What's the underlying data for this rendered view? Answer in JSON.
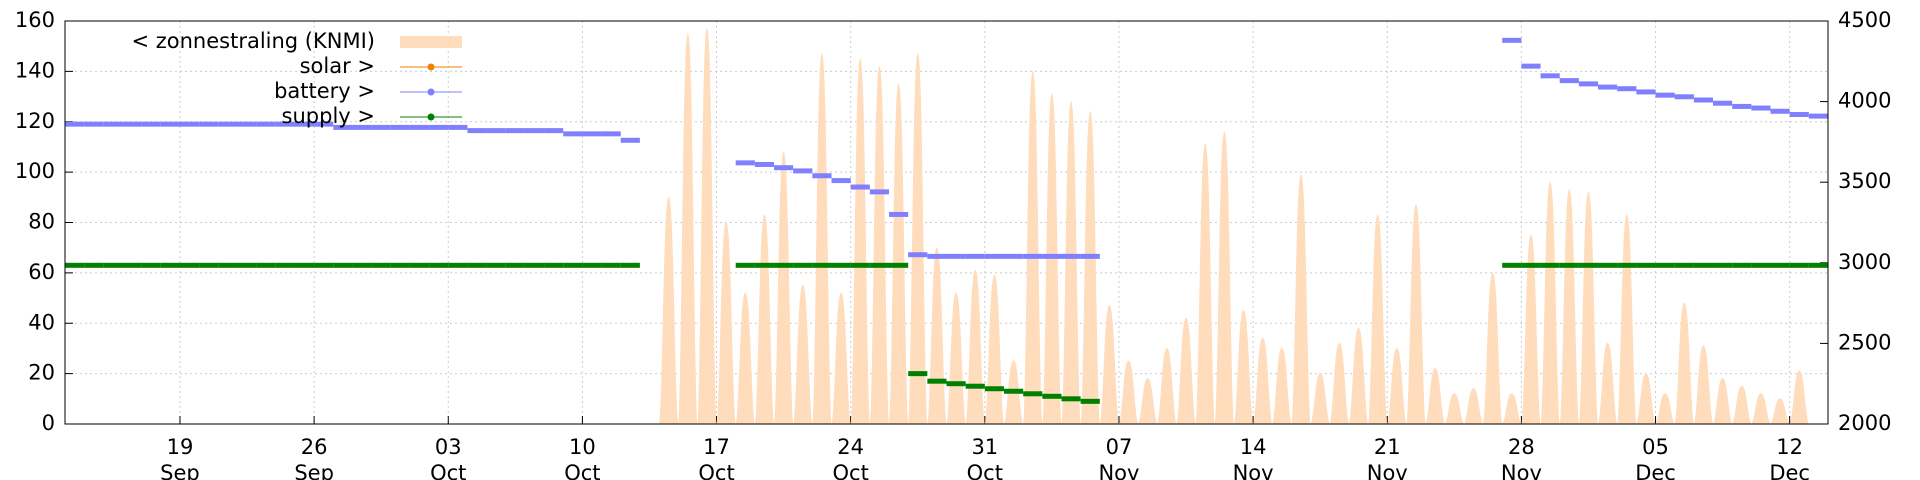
{
  "chart_data": {
    "type": "line",
    "legend": "upper left",
    "grid": true,
    "x": [
      "13 Sep",
      "14 Sep",
      "15 Sep",
      "16 Sep",
      "17 Sep",
      "18 Sep",
      "19 Sep",
      "20 Sep",
      "21 Sep",
      "22 Sep",
      "23 Sep",
      "24 Sep",
      "25 Sep",
      "26 Sep",
      "27 Sep",
      "28 Sep",
      "29 Sep",
      "30 Sep",
      "01 Oct",
      "02 Oct",
      "03 Oct",
      "04 Oct",
      "05 Oct",
      "06 Oct",
      "07 Oct",
      "08 Oct",
      "09 Oct",
      "10 Oct",
      "11 Oct",
      "12 Oct",
      "13 Oct",
      "14 Oct",
      "15 Oct",
      "16 Oct",
      "17 Oct",
      "18 Oct",
      "19 Oct",
      "20 Oct",
      "21 Oct",
      "22 Oct",
      "23 Oct",
      "24 Oct",
      "25 Oct",
      "26 Oct",
      "27 Oct",
      "28 Oct",
      "29 Oct",
      "30 Oct",
      "31 Oct",
      "01 Nov",
      "02 Nov",
      "03 Nov",
      "04 Nov",
      "05 Nov",
      "06 Nov",
      "07 Nov",
      "08 Nov",
      "09 Nov",
      "10 Nov",
      "11 Nov",
      "12 Nov",
      "13 Nov",
      "14 Nov",
      "15 Nov",
      "16 Nov",
      "17 Nov",
      "18 Nov",
      "19 Nov",
      "20 Nov",
      "21 Nov",
      "22 Nov",
      "23 Nov",
      "24 Nov",
      "25 Nov",
      "26 Nov",
      "27 Nov",
      "28 Nov",
      "29 Nov",
      "30 Nov",
      "01 Dec",
      "02 Dec",
      "03 Dec",
      "04 Dec",
      "05 Dec",
      "06 Dec",
      "07 Dec",
      "08 Dec",
      "09 Dec",
      "10 Dec",
      "11 Dec",
      "12 Dec",
      "13 Dec"
    ],
    "xticks": [
      {
        "value": "19 Sep",
        "label": "19\nSep"
      },
      {
        "value": "26 Sep",
        "label": "26\nSep"
      },
      {
        "value": "03 Oct",
        "label": "03\nOct"
      },
      {
        "value": "10 Oct",
        "label": "10\nOct"
      },
      {
        "value": "17 Oct",
        "label": "17\nOct"
      },
      {
        "value": "24 Oct",
        "label": "24\nOct"
      },
      {
        "value": "31 Oct",
        "label": "31\nOct"
      },
      {
        "value": "07 Nov",
        "label": "07\nNov"
      },
      {
        "value": "14 Nov",
        "label": "14\nNov"
      },
      {
        "value": "21 Nov",
        "label": "21\nNov"
      },
      {
        "value": "28 Nov",
        "label": "28\nNov"
      },
      {
        "value": "05 Dec",
        "label": "05\nDec"
      },
      {
        "value": "12 Dec",
        "label": "12\nDec"
      }
    ],
    "ylim": [
      0,
      160
    ],
    "yticks": [
      0,
      20,
      40,
      60,
      80,
      100,
      120,
      140,
      160
    ],
    "ytick_color": "#f07800",
    "y2lim": [
      2000,
      4500
    ],
    "y2ticks": [
      2000,
      2500,
      3000,
      3500,
      4000,
      4500
    ],
    "series": [
      {
        "name": "< zonnestraling (KNMI)",
        "color": "#ffdcbb",
        "style": "hump",
        "axis": "y",
        "values": [
          null,
          null,
          null,
          null,
          null,
          null,
          null,
          null,
          null,
          null,
          null,
          null,
          null,
          null,
          null,
          null,
          null,
          null,
          null,
          null,
          null,
          null,
          null,
          null,
          null,
          null,
          null,
          null,
          null,
          null,
          null,
          90,
          155,
          157,
          80,
          52,
          83,
          108,
          55,
          147,
          52,
          145,
          142,
          135,
          147,
          70,
          52,
          61,
          59,
          25,
          140,
          131,
          128,
          124,
          47,
          25,
          18,
          30,
          42,
          111,
          116,
          45,
          34,
          30,
          99,
          20,
          32,
          38,
          83,
          30,
          87,
          22,
          12,
          14,
          60,
          12,
          75,
          96,
          93,
          92,
          32,
          83,
          20,
          12,
          48,
          31,
          18,
          15,
          12,
          10,
          21,
          null
        ]
      },
      {
        "name": "solar >",
        "color": "#f08000",
        "style": "points",
        "axis": "y",
        "values": [
          null,
          null,
          null,
          null,
          null,
          null,
          null,
          null,
          null,
          null,
          null,
          null,
          null,
          null,
          null,
          null,
          null,
          null,
          null,
          null,
          null,
          null,
          null,
          null,
          null,
          null,
          null,
          null,
          null,
          null,
          null,
          null,
          null,
          null,
          null,
          null,
          null,
          null,
          null,
          null,
          null,
          null,
          null,
          null,
          null,
          null,
          null,
          null,
          null,
          null,
          null,
          null,
          null,
          null,
          null,
          null,
          null,
          null,
          null,
          null,
          null,
          null,
          null,
          null,
          null,
          null,
          null,
          null,
          null,
          null,
          null,
          null,
          null,
          null,
          null,
          null,
          null,
          null,
          null,
          null,
          null,
          null,
          null,
          null,
          null,
          null,
          null,
          null,
          null,
          null,
          null,
          null
        ]
      },
      {
        "name": "battery >",
        "color": "#8080ff",
        "style": "points",
        "axis": "y2",
        "values": [
          3860,
          3860,
          3860,
          3860,
          3860,
          3860,
          3860,
          3860,
          3860,
          3860,
          3860,
          3860,
          3860,
          3860,
          3840,
          3840,
          3840,
          3840,
          3840,
          3840,
          3840,
          3820,
          3820,
          3820,
          3820,
          3820,
          3800,
          3800,
          3800,
          3760,
          null,
          null,
          null,
          null,
          null,
          3620,
          3610,
          3590,
          3570,
          3540,
          3510,
          3470,
          3440,
          3300,
          3050,
          3040,
          3040,
          3040,
          3040,
          3040,
          3040,
          3040,
          3040,
          3040,
          null,
          null,
          null,
          null,
          null,
          null,
          null,
          null,
          null,
          null,
          null,
          null,
          null,
          null,
          null,
          null,
          null,
          null,
          null,
          null,
          null,
          4380,
          4220,
          4160,
          4130,
          4110,
          4090,
          4080,
          4060,
          4040,
          4030,
          4010,
          3990,
          3970,
          3960,
          3940,
          3920,
          3910
        ]
      },
      {
        "name": "supply >",
        "color": "#008000",
        "style": "points",
        "axis": "y",
        "values": [
          63,
          63,
          63,
          63,
          63,
          63,
          63,
          63,
          63,
          63,
          63,
          63,
          63,
          63,
          63,
          63,
          63,
          63,
          63,
          63,
          63,
          63,
          63,
          63,
          63,
          63,
          63,
          63,
          63,
          63,
          null,
          null,
          null,
          null,
          null,
          63,
          63,
          63,
          63,
          63,
          63,
          63,
          63,
          63,
          20,
          17,
          16,
          15,
          14,
          13,
          12,
          11,
          10,
          9,
          null,
          null,
          null,
          null,
          null,
          null,
          null,
          null,
          null,
          null,
          null,
          null,
          null,
          null,
          null,
          null,
          null,
          null,
          null,
          null,
          null,
          63,
          63,
          63,
          63,
          63,
          63,
          63,
          63,
          63,
          63,
          63,
          63,
          63,
          63,
          63,
          63,
          63
        ]
      }
    ]
  }
}
